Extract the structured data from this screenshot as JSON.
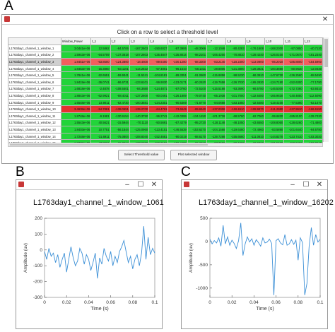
{
  "panels": {
    "a": "A",
    "b": "B",
    "c": "C"
  },
  "selector": {
    "instruction": "Click on a row to select a threshold level",
    "columns": [
      "",
      "Window_Power",
      "t_1",
      "t_2",
      "t_3",
      "t_4",
      "t_5",
      "t_6",
      "t_7",
      "t_8",
      "t_9",
      "t_10",
      "t_11",
      "t_12"
    ],
    "rows": [
      {
        "status": "g",
        "cells": [
          "L1763day1_channel_1_window_1",
          "3.0441e+06",
          "12.5862",
          "-84.5706",
          "-167.2603",
          "-150.6027",
          "-97.3906",
          "-48.3066",
          "-12.1046",
          "-80.4283",
          "-176.1608",
          "-168.2300",
          "-97.0850",
          "-40.7120"
        ]
      },
      {
        "status": "g",
        "cells": [
          "L1763day1_channel_1_window_2",
          "1.5943e+06",
          "-64.5709",
          "-137.3818",
          "-107.2603",
          "-135.4847",
          "-135.8014",
          "-98.2101",
          "-106.4200",
          "-70.8810",
          "-139.4240",
          "-126.0100",
          "-171.0670",
          "-181.2340"
        ]
      },
      {
        "status": "rs",
        "cells": [
          "L1763day1_channel_1_window_3",
          "1.8451e+06",
          "-63.8500",
          "-124.3800",
          "-18.4600",
          "-89.6400",
          "-100.1200",
          "-88.3300",
          "-83.2140",
          "-118.2300",
          "-113.0800",
          "-86.2010",
          "-185.8800",
          "-154.5900"
        ]
      },
      {
        "status": "g",
        "cells": [
          "L1763day1_channel_1_window_4",
          "1.8453e+06",
          "-15.3860",
          "-83.1101",
          "-114.2822",
          "-57.4801",
          "-96.1610",
          "-58.1311",
          "-29.8805",
          "-121.3800",
          "-128.3821",
          "-100.3880",
          "-80.9630",
          "-12.0430"
        ]
      },
      {
        "status": "g",
        "cells": [
          "L1763day1_channel_1_window_5",
          "1.7841e+06",
          "62.6551",
          "-59.9341",
          "-11.5241",
          "-104.8181",
          "-89.3351",
          "-91.0860",
          "-115.8858",
          "-98.5230",
          "-86.3910",
          "-147.6730",
          "-136.2560",
          "-98.5490"
        ]
      },
      {
        "status": "g",
        "cells": [
          "L1763day1_channel_1_window_6",
          "1.8419e+06",
          "-36.0741",
          "-96.6731",
          "-123.6101",
          "-59.9030",
          "-123.0171",
          "-60.2620",
          "-119.7658",
          "-126.7030",
          "-165.2830",
          "-124.7190",
          "-152.6300",
          "-77.1780"
        ]
      },
      {
        "status": "g",
        "cells": [
          "L1763day1_channel_1_window_7",
          "1.6818e+06",
          "-2.4878",
          "-108.5501",
          "-84.3680",
          "-114.4871",
          "-67.0760",
          "-72.5100",
          "-115.5168",
          "-93.3690",
          "-66.5780",
          "-146.5300",
          "-172.7390",
          "-83.9310"
        ]
      },
      {
        "status": "g",
        "cells": [
          "L1763day1_channel_1_window_8",
          "1.8843e+06",
          "-62.9921",
          "-88.4011",
          "-137.2600",
          "-80.0491",
          "-126.1809",
          "-79.0740",
          "-65.1938",
          "-101.7000",
          "-132.6480",
          "-165.9830",
          "-140.4850",
          "-112.5090"
        ]
      },
      {
        "status": "g",
        "cells": [
          "L1763day1_channel_1_window_9",
          "1.6548e+06",
          "23.9011",
          "-62.4730",
          "-100.3681",
          "-124.2301",
          "-90.5369",
          "-71.6770",
          "-84.0668",
          "-183.1850",
          "-32.5480",
          "-119.4100",
          "-77.5390",
          "-62.1470"
        ]
      },
      {
        "status": "r",
        "cells": [
          "L1763day1_channel_1_window_10",
          "3.4638e+06",
          "-54.7881",
          "-138.0651",
          "-139.2700",
          "-64.4761",
          "-73.6649",
          "-89.6540",
          "-137.0008",
          "-106.9110",
          "-108.9870",
          "-111.2980",
          "-137.9910",
          "-166.6150"
        ]
      },
      {
        "status": "g",
        "cells": [
          "L1763day1_channel_1_window_11",
          "1.8748e+06",
          "-9.1981",
          "-130.9154",
          "-140.3750",
          "-96.2741",
          "-142.0399",
          "-134.1450",
          "-101.3728",
          "-68.5780",
          "-62.7060",
          "-99.6820",
          "-185.8100",
          "-129.7430"
        ]
      },
      {
        "status": "g",
        "cells": [
          "L1763day1_channel_1_window_12",
          "1.5543e+06",
          "40.5621",
          "-15.5944",
          "-70.1110",
          "-50.5691",
          "-67.4279",
          "-95.2720",
          "-118.1148",
          "-48.1050",
          "-43.6550",
          "-108.8050",
          "-128.6260",
          "-71.4800"
        ]
      },
      {
        "status": "g",
        "cells": [
          "L1763day1_channel_1_window_13",
          "1.8403e+06",
          "10.7751",
          "-56.1844",
          "-125.0960",
          "-113.4151",
          "-146.5539",
          "-153.6270",
          "-104.1568",
          "-119.6480",
          "-72.4960",
          "-83.5890",
          "-101.6440",
          "-94.6780"
        ]
      },
      {
        "status": "g",
        "cells": [
          "L1763day1_channel_1_window_14",
          "1.7248e+06",
          "-31.6911",
          "-75.0804",
          "-108.8040",
          "-152.4661",
          "-90.0219",
          "-88.6170",
          "-129.7288",
          "-155.6680",
          "-111.0810",
          "-144.8270",
          "-123.7410",
          "-103.3020"
        ]
      },
      {
        "status": "g",
        "cells": [
          "L1763day1_channel_1_window_15",
          "1.8328e+06",
          "47.8921",
          "-15.8214",
          "-137.6200",
          "-182.2101",
          "-158.4489",
          "-96.2310",
          "-97.3558",
          "-90.1000",
          "-32.9360",
          "-101.5630",
          "-158.0480",
          "-152.8240"
        ]
      }
    ],
    "buttons": {
      "select": "Select Threshold value",
      "plot": "Plot selected window"
    }
  },
  "plot_b": {
    "window_title": "",
    "chart_data": {
      "type": "line",
      "title": "L1763day1_channel_1_window_1061",
      "xlabel": "Time (s)",
      "ylabel": "Amplitude (uv)",
      "xlim": [
        0,
        0.1
      ],
      "ylim": [
        -300,
        200
      ],
      "xticks": [
        "0",
        "0.02",
        "0.04",
        "0.06",
        "0.08",
        "0.1"
      ],
      "yticks": [
        "-300",
        "-200",
        "-100",
        "0",
        "100",
        "200"
      ],
      "series": [
        {
          "color": "#3b8fd6",
          "x": [
            0,
            0.002,
            0.004,
            0.006,
            0.008,
            0.01,
            0.012,
            0.014,
            0.016,
            0.018,
            0.02,
            0.022,
            0.024,
            0.026,
            0.028,
            0.03,
            0.032,
            0.034,
            0.036,
            0.038,
            0.04,
            0.042,
            0.044,
            0.046,
            0.048,
            0.05,
            0.052,
            0.054,
            0.056,
            0.058,
            0.06,
            0.062,
            0.064,
            0.066,
            0.068,
            0.07,
            0.072,
            0.074,
            0.076,
            0.078,
            0.08,
            0.082,
            0.084,
            0.086,
            0.088,
            0.09,
            0.092,
            0.094,
            0.096,
            0.098,
            0.1
          ],
          "y": [
            -10,
            -60,
            10,
            -40,
            -20,
            -80,
            -30,
            -110,
            -60,
            -20,
            -140,
            -60,
            20,
            -50,
            -100,
            -70,
            10,
            -20,
            -90,
            -30,
            -60,
            -130,
            -80,
            -20,
            -180,
            -50,
            -90,
            10,
            -40,
            -70,
            -10,
            -100,
            -40,
            -80,
            -10,
            20,
            60,
            -10,
            -80,
            -40,
            -120,
            -60,
            -30,
            -100,
            -20,
            150,
            -60,
            80,
            -30,
            10,
            -20
          ]
        }
      ]
    }
  },
  "plot_c": {
    "window_title": "",
    "chart_data": {
      "type": "line",
      "title": "L1763day1_channel_1_window_16202",
      "xlabel": "Time (s)",
      "ylabel": "Amplitude (uv)",
      "xlim": [
        0,
        0.1
      ],
      "ylim": [
        -1200,
        500
      ],
      "xticks": [
        "0",
        "0.02",
        "0.04",
        "0.06",
        "0.08",
        "0.1"
      ],
      "yticks": [
        "-1000",
        "-500",
        "0",
        "500"
      ],
      "series": [
        {
          "color": "#3b8fd6",
          "x": [
            0,
            0.002,
            0.004,
            0.006,
            0.008,
            0.01,
            0.012,
            0.014,
            0.016,
            0.018,
            0.02,
            0.022,
            0.024,
            0.026,
            0.028,
            0.03,
            0.032,
            0.034,
            0.036,
            0.038,
            0.04,
            0.042,
            0.044,
            0.046,
            0.048,
            0.05,
            0.052,
            0.054,
            0.056,
            0.058,
            0.06,
            0.062,
            0.064,
            0.066,
            0.068,
            0.07,
            0.072,
            0.074,
            0.076,
            0.078,
            0.08,
            0.082,
            0.084,
            0.086,
            0.088,
            0.09,
            0.092,
            0.094,
            0.096,
            0.098,
            0.1
          ],
          "y": [
            50,
            -50,
            20,
            -30,
            80,
            -100,
            350,
            -50,
            100,
            -80,
            30,
            -40,
            -150,
            20,
            400,
            -300,
            -50,
            100,
            -10,
            60,
            -80,
            40,
            -20,
            -100,
            80,
            -30,
            -10,
            50,
            -40,
            -1150,
            20,
            60,
            -30,
            -70,
            150,
            -80,
            -50,
            40,
            -60,
            30,
            -400,
            80,
            -20,
            -1150,
            -900,
            -100,
            300,
            -80,
            150,
            -10,
            50
          ]
        }
      ]
    }
  }
}
